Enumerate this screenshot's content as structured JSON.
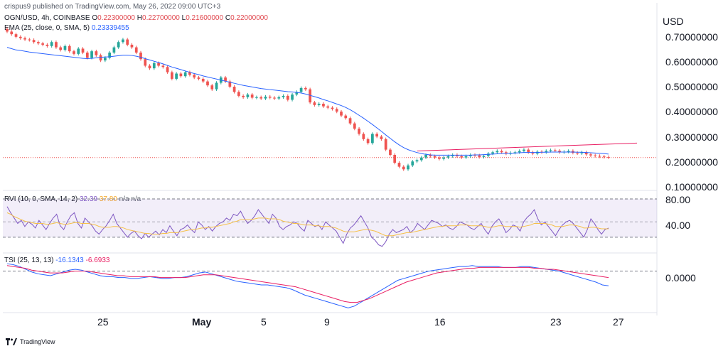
{
  "header": {
    "published": "crispus9 published on TradingView.com, May 26, 2022 09:00 UTC+3",
    "symbol": "OGN/USD, 4h, COINBASE",
    "ohlc": {
      "o_label": "O",
      "o": "0.22300000",
      "h_label": "H",
      "h": "0.22700000",
      "l_label": "L",
      "l": "0.21600000",
      "c_label": "C",
      "c": "0.22000000"
    },
    "ema_label": "EMA (25, close, 0, SMA, 5)",
    "ema_value": "0.23339455",
    "currency": "USD"
  },
  "rvi_header": {
    "label": "RVI (10, 0, SMA, 14, 2)",
    "v1": "32.39",
    "v2": "37.80",
    "v3": "n/a",
    "v4": "n/a"
  },
  "tsi_header": {
    "label": "TSI (25, 13, 13)",
    "v1": "-16.1343",
    "v2": "-6.6933"
  },
  "price_axis": [
    "0.70000000",
    "0.60000000",
    "0.50000000",
    "0.40000000",
    "0.30000000",
    "0.20000000",
    "0.10000000"
  ],
  "rvi_axis": [
    "80.00",
    "40.00"
  ],
  "tsi_axis": [
    "0.0000"
  ],
  "date_axis": [
    "25",
    "May",
    "5",
    "9",
    "16",
    "23",
    "27"
  ],
  "brand": "TradingView",
  "colors": {
    "up": "#26a69a",
    "down": "#ef5350",
    "ema": "#2962ff",
    "rvi": "#7e57c2",
    "rvi_ma": "#f5c04a",
    "tsi": "#2962ff",
    "tsi_signal": "#e91e63",
    "trend": "#e91e63",
    "rvi_band": "#7e57c2"
  },
  "chart_data": [
    {
      "type": "candlestick",
      "title": "OGN/USD, 4h, COINBASE",
      "ylabel": "USD",
      "ylim": [
        0.1,
        0.75
      ],
      "x_ticks": [
        "25",
        "May",
        "5",
        "9",
        "16",
        "23",
        "27"
      ],
      "close": [
        0.7,
        0.69,
        0.68,
        0.675,
        0.67,
        0.668,
        0.66,
        0.655,
        0.65,
        0.645,
        0.66,
        0.64,
        0.63,
        0.645,
        0.625,
        0.615,
        0.635,
        0.62,
        0.6,
        0.625,
        0.61,
        0.59,
        0.6,
        0.62,
        0.64,
        0.66,
        0.67,
        0.65,
        0.64,
        0.62,
        0.595,
        0.57,
        0.56,
        0.58,
        0.57,
        0.565,
        0.545,
        0.52,
        0.54,
        0.53,
        0.545,
        0.535,
        0.525,
        0.52,
        0.51,
        0.495,
        0.48,
        0.505,
        0.525,
        0.51,
        0.49,
        0.47,
        0.455,
        0.45,
        0.46,
        0.448,
        0.45,
        0.445,
        0.452,
        0.448,
        0.445,
        0.45,
        0.455,
        0.44,
        0.46,
        0.47,
        0.485,
        0.48,
        0.43,
        0.42,
        0.425,
        0.415,
        0.41,
        0.405,
        0.395,
        0.38,
        0.37,
        0.35,
        0.33,
        0.31,
        0.29,
        0.275,
        0.31,
        0.3,
        0.29,
        0.25,
        0.23,
        0.2,
        0.185,
        0.175,
        0.19,
        0.205,
        0.21,
        0.22,
        0.23,
        0.225,
        0.22,
        0.215,
        0.22,
        0.225,
        0.23,
        0.225,
        0.22,
        0.225,
        0.23,
        0.228,
        0.222,
        0.226,
        0.235,
        0.24,
        0.245,
        0.24,
        0.235,
        0.238,
        0.24,
        0.245,
        0.25,
        0.24,
        0.235,
        0.242,
        0.24,
        0.245,
        0.248,
        0.246,
        0.24,
        0.242,
        0.245,
        0.238,
        0.236,
        0.24,
        0.232,
        0.228,
        0.226,
        0.224,
        0.222,
        0.22
      ],
      "ema": [
        0.64,
        0.635,
        0.63,
        0.628,
        0.625,
        0.622,
        0.62,
        0.618,
        0.616,
        0.614,
        0.612,
        0.61,
        0.608,
        0.606,
        0.604,
        0.602,
        0.6,
        0.598,
        0.597,
        0.598,
        0.6,
        0.602,
        0.603,
        0.604,
        0.606,
        0.608,
        0.61,
        0.61,
        0.609,
        0.606,
        0.602,
        0.597,
        0.592,
        0.587,
        0.582,
        0.577,
        0.571,
        0.565,
        0.56,
        0.555,
        0.55,
        0.545,
        0.54,
        0.536,
        0.531,
        0.527,
        0.523,
        0.519,
        0.515,
        0.511,
        0.507,
        0.503,
        0.499,
        0.495,
        0.492,
        0.489,
        0.486,
        0.483,
        0.481,
        0.479,
        0.477,
        0.475,
        0.473,
        0.471,
        0.47,
        0.468,
        0.466,
        0.462,
        0.457,
        0.452,
        0.447,
        0.441,
        0.436,
        0.43,
        0.424,
        0.418,
        0.411,
        0.402,
        0.392,
        0.381,
        0.37,
        0.358,
        0.346,
        0.333,
        0.32,
        0.306,
        0.293,
        0.28,
        0.268,
        0.258,
        0.25,
        0.244,
        0.239,
        0.235,
        0.232,
        0.23,
        0.229,
        0.229,
        0.229,
        0.229,
        0.229,
        0.229,
        0.229,
        0.229,
        0.229,
        0.23,
        0.23,
        0.231,
        0.232,
        0.233,
        0.234,
        0.235,
        0.236,
        0.236,
        0.237,
        0.238,
        0.239,
        0.239,
        0.239,
        0.239,
        0.24,
        0.24,
        0.241,
        0.241,
        0.241,
        0.241,
        0.241,
        0.241,
        0.24,
        0.24,
        0.239,
        0.238,
        0.237,
        0.236,
        0.235,
        0.233
      ],
      "trend_line": [
        {
          "i": 92,
          "v": 0.245
        },
        {
          "i": 160,
          "v": 0.275
        }
      ],
      "last_price_line": 0.22
    },
    {
      "type": "line",
      "title": "RVI (10, 0, SMA, 14, 2)",
      "ylim": [
        15,
        80
      ],
      "band": [
        30,
        80
      ],
      "series": [
        {
          "name": "",
          "values": [
            70,
            62,
            55,
            48,
            52,
            44,
            50,
            47,
            42,
            52,
            46,
            40,
            48,
            55,
            60,
            45,
            40,
            50,
            58,
            62,
            48,
            42,
            55,
            50,
            45,
            38,
            34,
            40,
            45,
            52,
            60,
            48,
            42,
            36,
            30,
            35,
            38,
            32,
            28,
            35,
            30,
            34,
            38,
            33,
            40,
            36,
            45,
            38,
            32,
            40,
            42,
            46,
            40,
            36,
            50,
            46,
            40,
            44,
            38,
            44,
            48,
            50,
            55,
            52,
            60,
            58,
            64,
            55,
            48,
            52,
            58,
            66,
            60,
            54,
            48,
            60,
            55,
            44,
            40,
            44,
            46,
            50,
            48,
            42,
            38,
            52,
            48,
            44,
            46,
            40,
            50,
            46,
            42,
            38,
            30,
            22,
            34,
            42,
            46,
            52,
            58,
            50,
            42,
            30,
            26,
            20,
            18,
            24,
            34,
            40,
            36,
            38,
            40,
            44,
            36,
            40,
            48,
            44,
            40,
            46,
            52,
            50,
            48,
            44,
            46,
            42,
            40,
            44,
            50,
            48,
            46,
            42,
            40,
            44,
            48,
            40,
            34,
            44,
            50,
            54,
            46,
            36,
            40,
            46,
            44,
            38,
            50,
            56,
            60,
            66,
            54,
            46,
            50,
            44,
            38,
            32,
            40,
            46,
            50,
            52,
            48,
            42,
            36,
            30,
            40,
            54,
            48,
            40,
            34,
            40,
            42
          ]
        },
        {
          "name": "",
          "values": [
            62,
            60,
            57,
            55,
            53,
            51,
            50,
            49,
            48,
            48,
            48,
            47,
            47,
            48,
            49,
            48,
            47,
            47,
            48,
            49,
            49,
            48,
            48,
            48,
            47,
            46,
            44,
            43,
            43,
            43,
            44,
            44,
            43,
            42,
            40,
            39,
            38,
            37,
            36,
            35,
            35,
            34,
            34,
            34,
            35,
            35,
            36,
            36,
            36,
            37,
            38,
            39,
            40,
            40,
            41,
            42,
            42,
            43,
            43,
            44,
            45,
            46,
            47,
            48,
            50,
            51,
            53,
            53,
            53,
            53,
            54,
            55,
            55,
            55,
            54,
            54,
            54,
            53,
            51,
            50,
            49,
            48,
            48,
            47,
            46,
            46,
            46,
            45,
            45,
            44,
            44,
            44,
            43,
            42,
            40,
            38,
            37,
            37,
            37,
            38,
            39,
            40,
            40,
            39,
            38,
            36,
            34,
            32,
            32,
            32,
            33,
            34,
            35,
            36,
            36,
            37,
            38,
            39,
            40,
            41,
            42,
            43,
            44,
            44,
            45,
            45,
            45,
            45,
            46,
            46,
            46,
            45,
            45,
            45,
            45,
            44,
            43,
            43,
            44,
            45,
            45,
            44,
            44,
            44,
            44,
            43,
            44,
            45,
            46,
            48,
            48,
            48,
            48,
            47,
            46,
            44,
            44,
            44,
            45,
            46,
            46,
            45,
            44,
            42,
            42,
            43,
            43,
            42,
            41,
            41,
            41
          ]
        }
      ]
    },
    {
      "type": "line",
      "title": "TSI (25, 13, 13)",
      "series": [
        {
          "name": "",
          "values": [
            8,
            7,
            5,
            2,
            -1,
            -3,
            -4,
            -5,
            -3,
            -1,
            1,
            2,
            1,
            -1,
            -3,
            -5,
            -6,
            -6,
            -7,
            -7,
            -8,
            -8,
            -7,
            -6,
            -7,
            -8,
            -8,
            -7,
            -7,
            -6,
            -4,
            -2,
            -1,
            -3,
            -5,
            -7,
            -9,
            -11,
            -12,
            -13,
            -14,
            -15,
            -15,
            -16,
            -17,
            -18,
            -20,
            -23,
            -26,
            -28,
            -30,
            -32,
            -34,
            -36,
            -38,
            -40,
            -38,
            -34,
            -30,
            -26,
            -22,
            -18,
            -14,
            -10,
            -8,
            -6,
            -4,
            -2,
            0,
            1,
            2,
            3,
            4,
            5,
            5,
            6,
            5,
            5,
            5,
            5,
            4,
            4,
            4,
            5,
            5,
            4,
            3,
            2,
            1,
            0,
            -2,
            -4,
            -6,
            -8,
            -10,
            -12,
            -15,
            -16
          ]
        },
        {
          "name": "",
          "values": [
            6,
            5,
            4,
            3,
            1,
            0,
            -1,
            -2,
            -2,
            -2,
            -1,
            0,
            0,
            0,
            -1,
            -2,
            -3,
            -4,
            -5,
            -5,
            -6,
            -6,
            -6,
            -6,
            -6,
            -7,
            -7,
            -7,
            -7,
            -7,
            -6,
            -5,
            -4,
            -4,
            -4,
            -5,
            -6,
            -7,
            -8,
            -9,
            -10,
            -11,
            -12,
            -13,
            -14,
            -15,
            -16,
            -17,
            -19,
            -21,
            -23,
            -25,
            -27,
            -29,
            -31,
            -33,
            -34,
            -34,
            -32,
            -30,
            -27,
            -24,
            -21,
            -18,
            -15,
            -12,
            -10,
            -8,
            -6,
            -4,
            -2,
            -1,
            0,
            1,
            2,
            3,
            3,
            4,
            4,
            4,
            4,
            4,
            4,
            4,
            4,
            4,
            3,
            3,
            2,
            2,
            1,
            0,
            -1,
            -2,
            -3,
            -4,
            -5,
            -6,
            -7
          ]
        }
      ]
    }
  ]
}
